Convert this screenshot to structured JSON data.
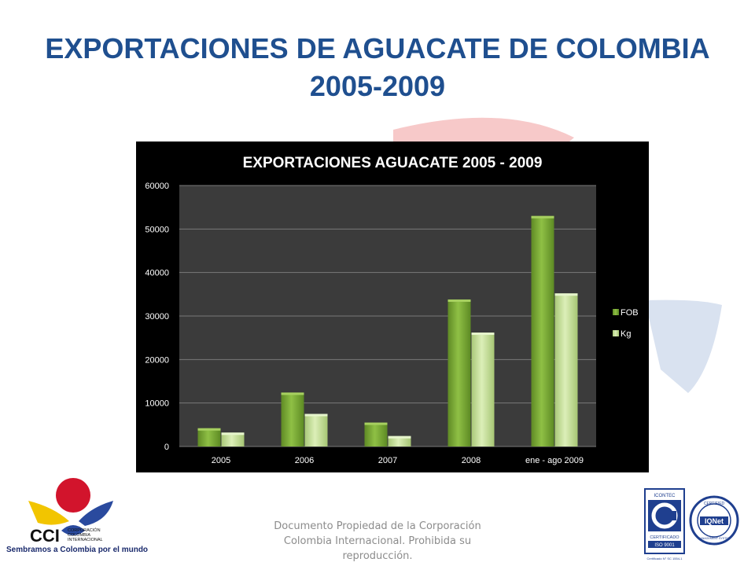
{
  "page": {
    "title_line1": "EXPORTACIONES DE AGUACATE DE COLOMBIA",
    "title_line2": "2005-2009",
    "footer": "Documento Propiedad de la Corporación Colombia Internacional. Prohibida su reproducción.",
    "logo_left": {
      "acronym": "CCI",
      "name_lines": [
        "CORPORACIÓN",
        "COLOMBIA",
        "INTERNACIONAL"
      ],
      "slogan": "Sembramos a Colombia por el mundo"
    },
    "logo_right": {
      "icontec_top": "ICONTEC",
      "icontec_label": "CERTIFICADO",
      "icontec_iso": "ISO 9001",
      "icontec_cert": "Certificado N° SC 1554-1",
      "iqnet_top": "CERTIFIED",
      "iqnet_bottom": "MANAGEMENT SYSTEM",
      "iqnet_name": "IQNet"
    }
  },
  "colors": {
    "title": "#1f4f8f",
    "chart_bg": "#000000",
    "plot_bg": "#3b3b3b",
    "fob": "#7fae3c",
    "kg": "#c9e39a"
  },
  "chart_data": {
    "type": "bar",
    "title": "EXPORTACIONES AGUACATE 2005 - 2009",
    "categories": [
      "2005",
      "2006",
      "2007",
      "2008",
      "ene - ago 2009"
    ],
    "series": [
      {
        "name": "FOB",
        "values": [
          4200,
          12400,
          5500,
          33800,
          53000
        ]
      },
      {
        "name": "Kg",
        "values": [
          3200,
          7500,
          2400,
          26200,
          35200
        ]
      }
    ],
    "ylim": [
      0,
      60000
    ],
    "yticks": [
      0,
      10000,
      20000,
      30000,
      40000,
      50000,
      60000
    ],
    "grid": true,
    "legend": "right"
  }
}
